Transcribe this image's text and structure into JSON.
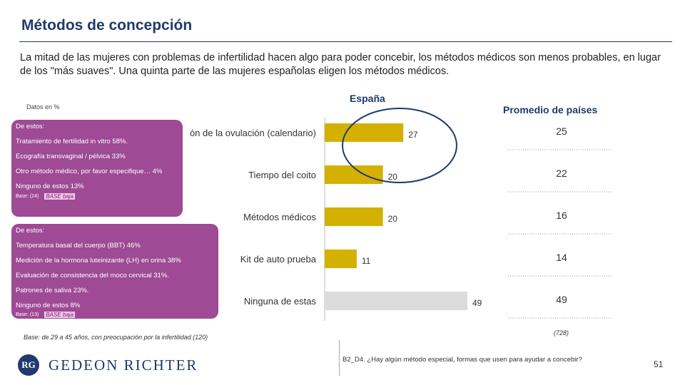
{
  "title": "Métodos de concepción",
  "intro": "La mitad de las mujeres con problemas de infertilidad hacen algo para poder concebir, los métodos médicos son menos probables, en lugar de los \"más suaves\". Una quinta parte de las mujeres españolas eligen los métodos médicos.",
  "units_label": "Datos en %",
  "spain_label": "España",
  "avg_label": "Promedio de países",
  "chart_data": {
    "type": "bar",
    "orientation": "horizontal",
    "categories": [
      "Predicción de la ovulación (calendario)",
      "Tiempo del coito",
      "Métodos médicos",
      "Kit de auto prueba",
      "Ninguna de estas"
    ],
    "category_labels_visible": [
      "ón de la ovulación (calendario)",
      "Tiempo del coito",
      "Métodos médicos",
      "Kit de auto prueba",
      "Ninguna de estas"
    ],
    "series": [
      {
        "name": "España",
        "values": [
          27,
          20,
          20,
          11,
          49
        ],
        "colors": [
          "#d4b000",
          "#d4b000",
          "#d4b000",
          "#d4b000",
          "#dcdcdc"
        ]
      },
      {
        "name": "Promedio de países",
        "values": [
          25,
          22,
          16,
          14,
          49
        ]
      }
    ],
    "xlim": [
      0,
      50
    ]
  },
  "callout1": {
    "items": [
      "De estos:",
      "Tratamiento de fertilidad in vitro 58%.",
      "Ecografía transvaginal / pélvica 33%",
      "Otro método médico, por favor especifique… 4%",
      "Ninguno de estos 13%"
    ],
    "base": "Base: (24)",
    "base_low": "BASE baja"
  },
  "callout2": {
    "items": [
      "De estos:",
      "Temperatura basal del cuerpo (BBT) 46%",
      "Medición de la hormona luteinizante (LH) en orina 38%",
      "Evaluación de consistencia del moco cervical 31%.",
      "Patrones de saliva 23%.",
      "Ninguno de estos 8%"
    ],
    "base": "Base: (13)",
    "base_low": "BASE baja"
  },
  "base_note": "Base: de 29 a 45 años, con preocupación por la infertilidad (120)",
  "avg_base": "(728)",
  "question": "B2_D4. ¿Hay algún método especial, formas que usen para ayudar a concebir?",
  "page_number": "51",
  "logo": {
    "mark": "RG",
    "text": "GEDEON RICHTER"
  },
  "colors": {
    "accent": "#1f3a6e",
    "bar": "#d4b000",
    "bar_none": "#dcdcdc",
    "callout": "#9e4a95"
  }
}
